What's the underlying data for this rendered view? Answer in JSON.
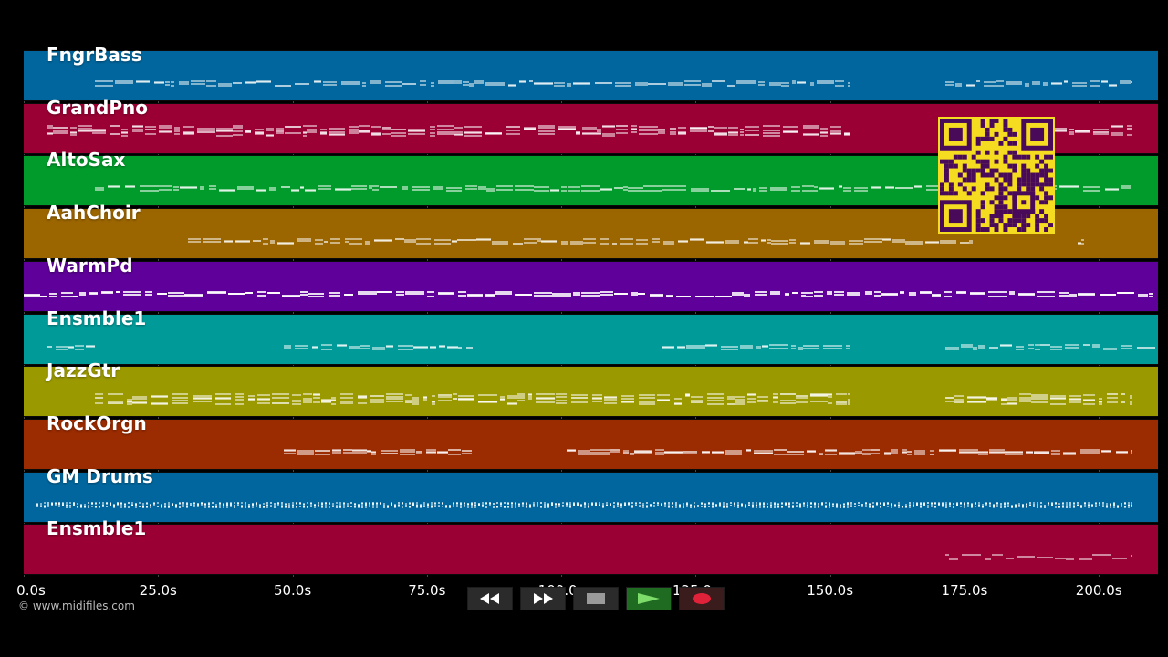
{
  "tracks": [
    {
      "name": "FngrBass",
      "color": "#00669d",
      "style": "bass"
    },
    {
      "name": "GrandPno",
      "color": "#9a0033",
      "style": "piano"
    },
    {
      "name": "AltoSax",
      "color": "#009b2b",
      "style": "sax"
    },
    {
      "name": "AahChoir",
      "color": "#9b6500",
      "style": "choir"
    },
    {
      "name": "WarmPd",
      "color": "#5e0099",
      "style": "pad"
    },
    {
      "name": "Ensmble1",
      "color": "#009b99",
      "style": "ens"
    },
    {
      "name": "JazzGtr",
      "color": "#9b9900",
      "style": "guitar"
    },
    {
      "name": "RockOrgn",
      "color": "#9b2b00",
      "style": "organ"
    },
    {
      "name": "GM Drums",
      "color": "#00669d",
      "style": "drums"
    },
    {
      "name": "Ensmble1",
      "color": "#9a0033",
      "style": "ens2"
    }
  ],
  "timeline": {
    "max_seconds": 211,
    "ticks": [
      "0.0s",
      "25.0s",
      "50.0s",
      "75.0s",
      "100.0s",
      "125.0s",
      "150.0s",
      "175.0s",
      "200.0s"
    ],
    "tick_values": [
      0,
      25,
      50,
      75,
      100,
      125,
      150,
      175,
      200
    ]
  },
  "copyright": "© www.midifiles.com",
  "qr_code": {
    "color": "#f5dc20",
    "dark": "#4a0a5a"
  },
  "transport": {
    "buttons": [
      {
        "name": "rewind-button",
        "icon": "rewind-icon"
      },
      {
        "name": "fast-forward-button",
        "icon": "fast-forward-icon"
      },
      {
        "name": "stop-button",
        "icon": "stop-icon"
      },
      {
        "name": "play-button",
        "icon": "play-icon"
      },
      {
        "name": "record-button",
        "icon": "record-icon"
      }
    ]
  }
}
